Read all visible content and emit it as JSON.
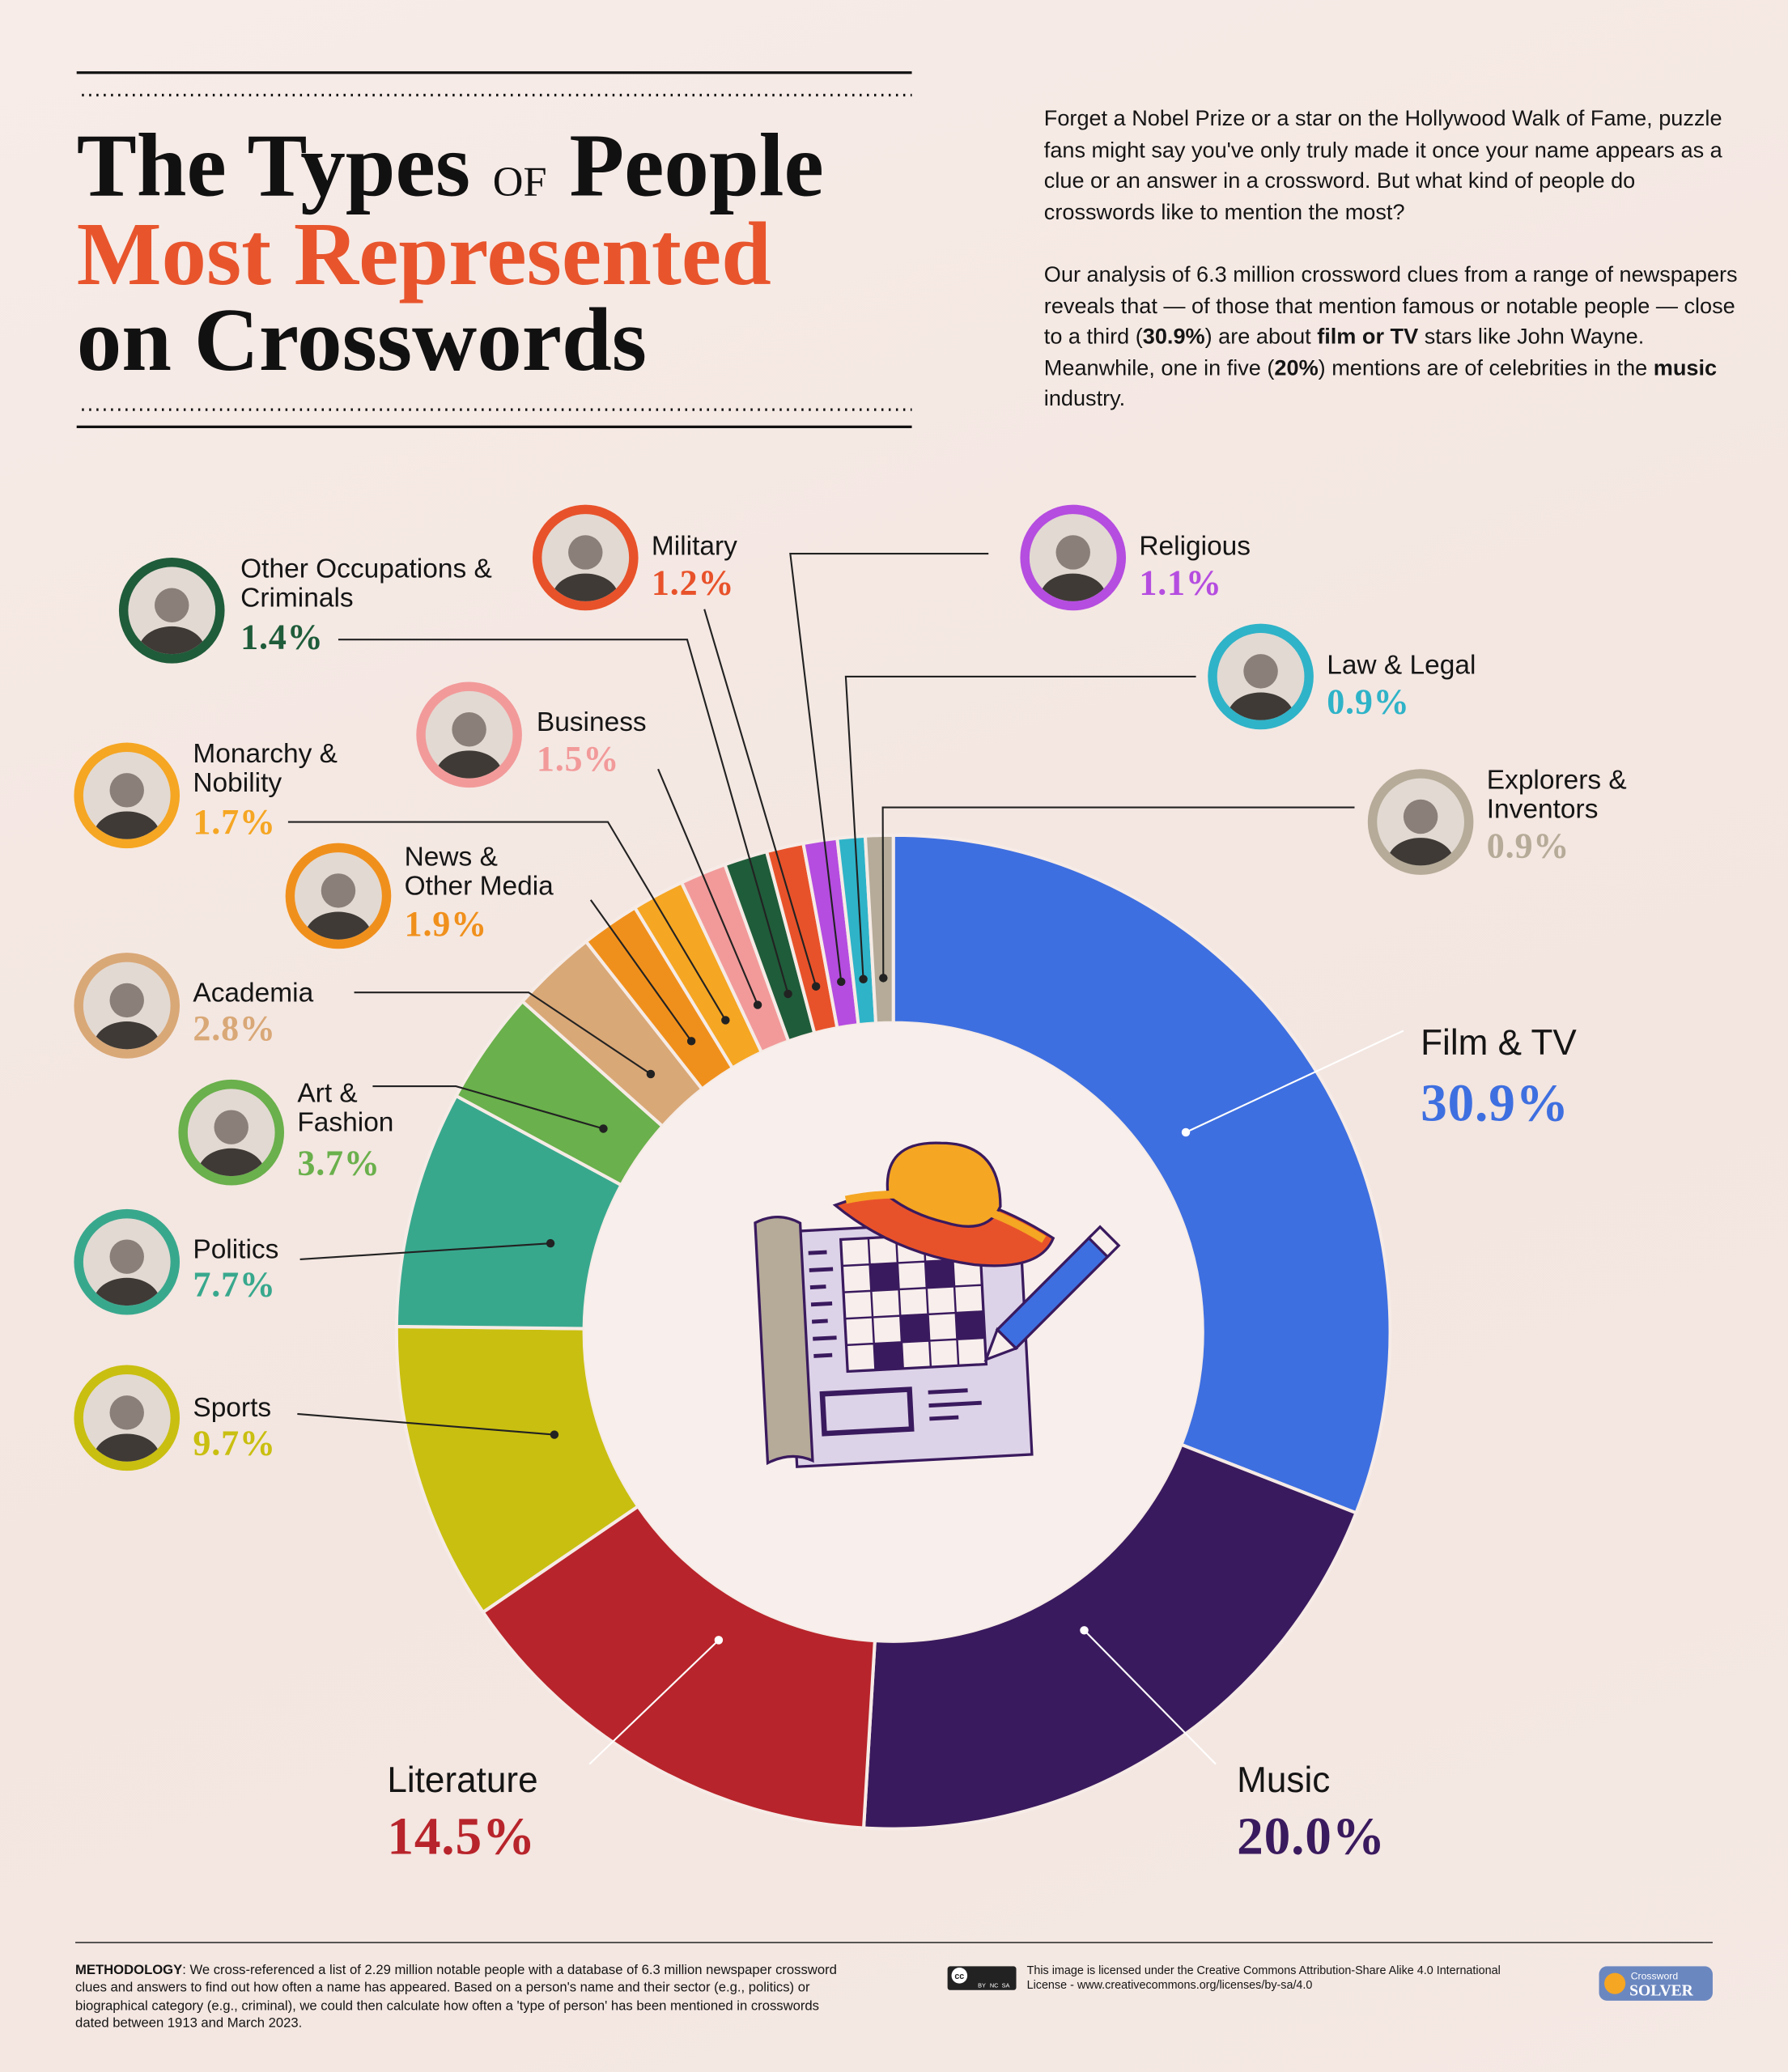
{
  "header": {
    "title_the_types": "The Types",
    "title_of": "OF",
    "title_people": "People",
    "title_line2": "Most Represented",
    "title_line3": "on Crosswords"
  },
  "intro": {
    "paragraph1": "Forget a Nobel Prize or a star on the Hollywood Walk of Fame, puzzle fans might say you've only truly made it once your name appears as a clue or an answer in a crossword. But what kind of people do crosswords like to mention the most?",
    "paragraph2": [
      "Our analysis of 6.3 million crossword clues from a range of newspapers reveals that — of those that mention famous or notable people — close to a third (",
      "30.9%",
      ") are about ",
      "film or TV",
      " stars like John Wayne. Meanwhile, one in five (",
      "20%",
      ") mentions are of celebrities in the ",
      "music",
      " industry."
    ]
  },
  "chart_data": {
    "type": "donut",
    "categories": [
      "Film & TV",
      "Music",
      "Literature",
      "Sports",
      "Politics",
      "Art & Fashion",
      "Academia",
      "News & Other Media",
      "Monarchy & Nobility",
      "Business",
      "Other Occupations & Criminals",
      "Military",
      "Religious",
      "Law & Legal",
      "Explorers & Inventors"
    ],
    "values": [
      30.9,
      20.0,
      14.5,
      9.7,
      7.7,
      3.7,
      2.8,
      1.9,
      1.7,
      1.5,
      1.4,
      1.2,
      1.1,
      0.9,
      0.9
    ],
    "value_labels": [
      "30.9%",
      "20.0%",
      "14.5%",
      "9.7%",
      "7.7%",
      "3.7%",
      "2.8%",
      "1.9%",
      "1.7%",
      "1.5%",
      "1.4%",
      "1.2%",
      "1.1%",
      "0.9%",
      "0.9%"
    ],
    "colors": [
      "#3e6fe0",
      "#3a1a5e",
      "#b8242b",
      "#c9bf10",
      "#38a88d",
      "#6ab04c",
      "#d9a877",
      "#f0901c",
      "#f5a623",
      "#f29a9a",
      "#1f5c3a",
      "#e8522a",
      "#b54de0",
      "#2fb3c8",
      "#b5ab98"
    ]
  },
  "methodology": {
    "label": "METHODOLOGY",
    "text": ": We cross-referenced a list of 2.29 million notable people with a database of 6.3 million newspaper crossword clues and answers to find out how often a name has appeared. Based on a person's name and their sector (e.g., politics) or biographical category (e.g., criminal), we could then calculate how often a 'type of person' has been mentioned in crosswords dated between 1913 and March 2023."
  },
  "license": {
    "badge": [
      "cc",
      "BY",
      "NC",
      "SA"
    ],
    "text": "This image is licensed under the Creative Commons Attribution-Share Alike 4.0 International License - www.creativecommons.org/licenses/by-sa/4.0"
  },
  "logo": [
    "Crossword",
    "SOLVER"
  ]
}
